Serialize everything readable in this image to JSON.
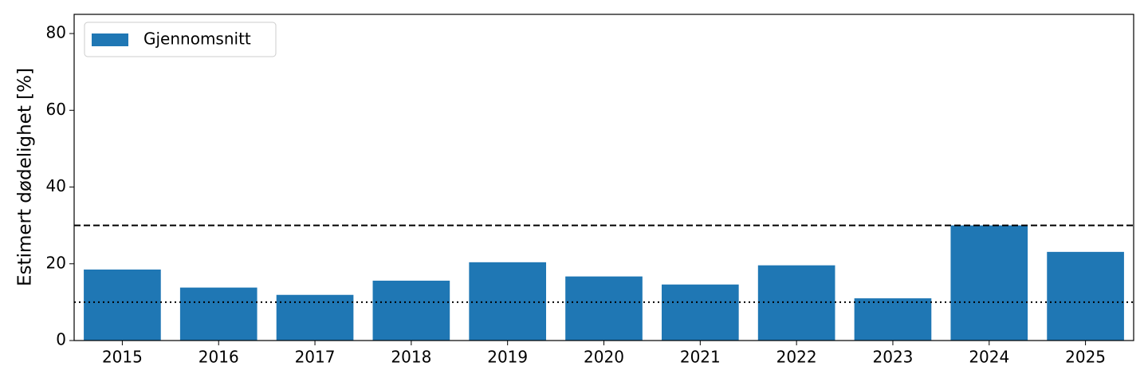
{
  "chart_data": {
    "type": "bar",
    "ylabel": "Estimert dødelighet [%]",
    "categories": [
      "2015",
      "2016",
      "2017",
      "2018",
      "2019",
      "2020",
      "2021",
      "2022",
      "2023",
      "2024",
      "2025"
    ],
    "series": [
      {
        "name": "Gjennomsnitt",
        "color": "#1f77b4",
        "values": [
          18.5,
          13.8,
          11.9,
          15.6,
          20.4,
          16.7,
          14.6,
          19.6,
          11.0,
          30.0,
          23.1
        ]
      }
    ],
    "ylim": [
      0,
      85
    ],
    "yticks": [
      0,
      20,
      40,
      60,
      80
    ],
    "legend": "upper left",
    "hlines": [
      {
        "value": 30,
        "style": "dashed"
      },
      {
        "value": 10,
        "style": "dotted"
      }
    ]
  }
}
